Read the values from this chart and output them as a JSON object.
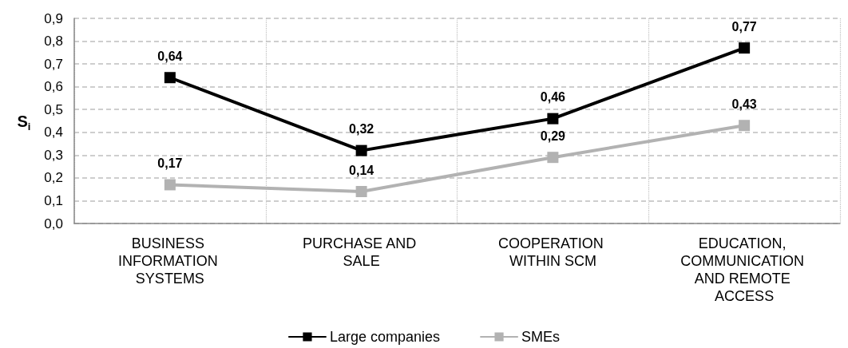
{
  "chart_data": {
    "type": "line",
    "ylabel": "S$_{i}$",
    "categories": [
      "BUSINESS INFORMATION SYSTEMS",
      "PURCHASE AND SALE",
      "COOPERATION WITHIN SCM",
      "EDUCATION, COMMUNICATION AND REMOTE ACCESS"
    ],
    "series": [
      {
        "name": "Large companies",
        "color": "#000000",
        "values": [
          0.64,
          0.32,
          0.46,
          0.77
        ],
        "value_labels": [
          "0,64",
          "0,32",
          "0,46",
          "0,77"
        ]
      },
      {
        "name": "SMEs",
        "color": "#b2b2b2",
        "values": [
          0.17,
          0.14,
          0.29,
          0.43
        ],
        "value_labels": [
          "0,17",
          "0,14",
          "0,29",
          "0,43"
        ]
      }
    ],
    "ylim": [
      0,
      0.9
    ],
    "yticks": [
      {
        "value": 0,
        "label": "0,0"
      },
      {
        "value": 0.1,
        "label": "0,1"
      },
      {
        "value": 0.2,
        "label": "0,2"
      },
      {
        "value": 0.3,
        "label": "0,3"
      },
      {
        "value": 0.4,
        "label": "0,4"
      },
      {
        "value": 0.5,
        "label": "0,5"
      },
      {
        "value": 0.6,
        "label": "0,6"
      },
      {
        "value": 0.7,
        "label": "0,7"
      },
      {
        "value": 0.8,
        "label": "0,8"
      },
      {
        "value": 0.9,
        "label": "0,9"
      }
    ],
    "grid": true,
    "legend": "bottom",
    "marker": "square",
    "line_style": "solid"
  }
}
